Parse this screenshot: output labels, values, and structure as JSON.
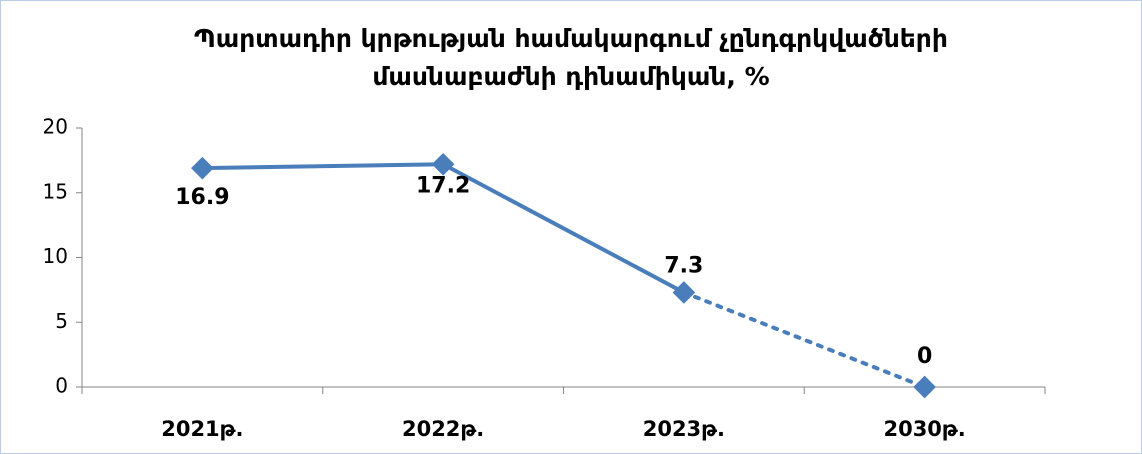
{
  "chart_data": {
    "type": "line",
    "title": [
      "Պարտադիր կրթության համակարգում չընդգրկվածների",
      "մասնաբաժնի դինամիկան, %"
    ],
    "categories": [
      "2021թ.",
      "2022թ.",
      "2023թ.",
      "2030թ."
    ],
    "series": [
      {
        "color": "#4a7ebb",
        "values": [
          16.9,
          17.2,
          7.3,
          0
        ]
      }
    ],
    "dotted_from_index": 2,
    "ylim": [
      0,
      20
    ],
    "yticks": [
      0,
      5,
      10,
      15,
      20
    ],
    "grid": false
  }
}
